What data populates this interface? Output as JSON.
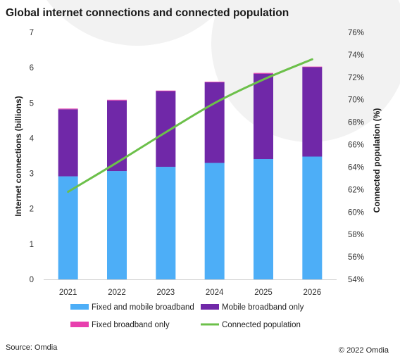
{
  "chart_data": {
    "type": "bar",
    "stacked": true,
    "title": "Global internet connections and connected population",
    "categories": [
      "2021",
      "2022",
      "2023",
      "2024",
      "2025",
      "2026"
    ],
    "series": [
      {
        "name": "Fixed and mobile broadband",
        "color": "#4daef7",
        "axis": "left",
        "values": [
          2.92,
          3.07,
          3.19,
          3.3,
          3.41,
          3.48
        ]
      },
      {
        "name": "Mobile broadband only",
        "color": "#7028a8",
        "axis": "left",
        "values": [
          1.9,
          2.0,
          2.15,
          2.29,
          2.42,
          2.54
        ]
      },
      {
        "name": "Fixed broadband only",
        "color": "#e83fae",
        "axis": "left",
        "values": [
          0.02,
          0.02,
          0.01,
          0.01,
          0.02,
          0.01
        ]
      },
      {
        "name": "Connected population",
        "color": "#6cc04a",
        "axis": "right",
        "type": "line",
        "values": [
          61.8,
          64.4,
          67.1,
          69.7,
          71.8,
          73.6
        ]
      }
    ],
    "ylabel": "Internet connections (billions)",
    "y2label": "Connected population (%)",
    "ylim": [
      0,
      7
    ],
    "yticks": [
      "0",
      "1",
      "2",
      "3",
      "4",
      "5",
      "6",
      "7"
    ],
    "y2lim": [
      54,
      76
    ],
    "y2ticks": [
      "54%",
      "56%",
      "58%",
      "60%",
      "62%",
      "64%",
      "66%",
      "68%",
      "70%",
      "72%",
      "74%",
      "76%"
    ],
    "grid": false,
    "legend_position": "bottom"
  },
  "footer": {
    "source": "Source: Omdia",
    "copyright": "© 2022 Omdia"
  }
}
